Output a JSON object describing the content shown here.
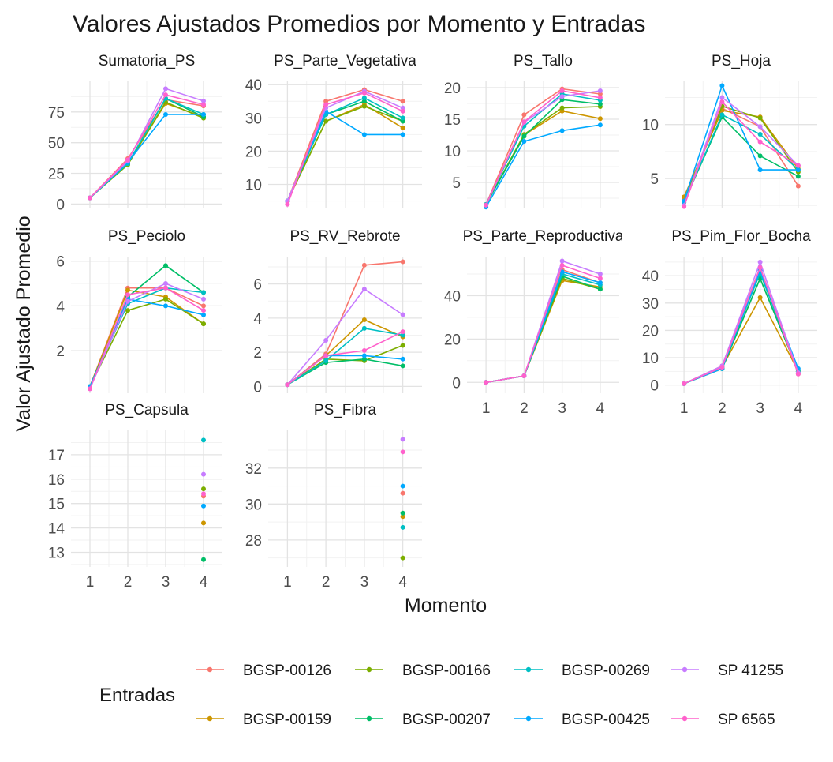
{
  "chart_data": {
    "type": "line",
    "title": "Valores Ajustados Promedios por Momento y Entradas",
    "xlabel": "Momento",
    "ylabel": "Valor Ajustado Promedio",
    "legend": {
      "title": "Entradas",
      "position": "bottom",
      "entries": [
        "BGSP-00126",
        "BGSP-00159",
        "BGSP-00166",
        "BGSP-00207",
        "BGSP-00269",
        "BGSP-00425",
        "SP 41255",
        "SP 6565"
      ]
    },
    "colors": {
      "BGSP-00126": "#F8766D",
      "BGSP-00159": "#CD9600",
      "BGSP-00166": "#7CAE00",
      "BGSP-00207": "#00BE67",
      "BGSP-00269": "#00BFC4",
      "BGSP-00425": "#00A9FF",
      "SP 41255": "#C77CFF",
      "SP 6565": "#FF61CC"
    },
    "x": [
      1,
      2,
      3,
      4
    ],
    "grid": true,
    "facets": [
      {
        "name": "Sumatoria_PS",
        "ylim": [
          -3,
          100
        ],
        "yticks": [
          0,
          25,
          50,
          75
        ],
        "xticks": [],
        "series": {
          "BGSP-00126": [
            5,
            37,
            85,
            80
          ],
          "BGSP-00159": [
            5,
            33,
            82,
            71
          ],
          "BGSP-00166": [
            5,
            32,
            83,
            70
          ],
          "BGSP-00207": [
            5,
            33,
            86,
            71
          ],
          "BGSP-00269": [
            5,
            33,
            86,
            73
          ],
          "BGSP-00425": [
            5,
            34,
            73,
            73
          ],
          "SP 41255": [
            5,
            35,
            94,
            84
          ],
          "SP 6565": [
            5,
            36,
            89,
            81
          ]
        }
      },
      {
        "name": "PS_Parte_Vegetativa",
        "ylim": [
          3,
          41
        ],
        "yticks": [
          10,
          20,
          30,
          40
        ],
        "xticks": [],
        "series": {
          "BGSP-00126": [
            5,
            35,
            38.5,
            35
          ],
          "BGSP-00159": [
            5,
            29,
            34,
            27
          ],
          "BGSP-00166": [
            5,
            29,
            33.5,
            29
          ],
          "BGSP-00207": [
            5,
            31,
            35,
            29
          ],
          "BGSP-00269": [
            5,
            31,
            36,
            30
          ],
          "BGSP-00425": [
            5,
            32,
            25,
            25
          ],
          "SP 41255": [
            5,
            33,
            38,
            33
          ],
          "SP 6565": [
            4,
            34,
            37.5,
            32
          ]
        }
      },
      {
        "name": "PS_Tallo",
        "ylim": [
          1,
          21
        ],
        "yticks": [
          5,
          10,
          15,
          20
        ],
        "xticks": [],
        "series": {
          "BGSP-00126": [
            1.5,
            15.7,
            19.8,
            19
          ],
          "BGSP-00159": [
            1.5,
            12.5,
            16.3,
            15.1
          ],
          "BGSP-00166": [
            1.5,
            12.6,
            16.8,
            17
          ],
          "BGSP-00207": [
            1.5,
            12.3,
            18.1,
            17.4
          ],
          "BGSP-00269": [
            1.5,
            13.9,
            19,
            18
          ],
          "BGSP-00425": [
            1.1,
            11.5,
            13.2,
            14.1
          ],
          "SP 41255": [
            1.4,
            14.5,
            18.6,
            19.5
          ],
          "SP 6565": [
            1.4,
            14.6,
            19.5,
            18.4
          ]
        }
      },
      {
        "name": "PS_Hoja",
        "ylim": [
          2.3,
          14
        ],
        "yticks": [
          5,
          10
        ],
        "xticks": [],
        "series": {
          "BGSP-00126": [
            3.2,
            11.5,
            9.8,
            4.3
          ],
          "BGSP-00159": [
            3.3,
            11.3,
            10.7,
            5.9
          ],
          "BGSP-00166": [
            2.9,
            11.7,
            10.6,
            5.6
          ],
          "BGSP-00207": [
            2.8,
            10.7,
            7.1,
            5.2
          ],
          "BGSP-00269": [
            2.8,
            10.9,
            9.1,
            5.8
          ],
          "BGSP-00425": [
            2.9,
            13.6,
            5.8,
            5.8
          ],
          "SP 41255": [
            2.5,
            12.5,
            9.8,
            6.2
          ],
          "SP 6565": [
            2.4,
            12.1,
            8.4,
            6.2
          ]
        }
      },
      {
        "name": "PS_Peciolo",
        "ylim": [
          0.1,
          6.2
        ],
        "yticks": [
          2,
          4,
          6
        ],
        "xticks": [],
        "series": {
          "BGSP-00126": [
            0.4,
            4.8,
            4.8,
            4
          ],
          "BGSP-00159": [
            0.4,
            4.7,
            4.4,
            3.2
          ],
          "BGSP-00166": [
            0.4,
            3.8,
            4.3,
            3.2
          ],
          "BGSP-00207": [
            0.4,
            4.4,
            5.8,
            4.6
          ],
          "BGSP-00269": [
            0.4,
            4.1,
            4.8,
            4.6
          ],
          "BGSP-00425": [
            0.4,
            4.3,
            4,
            3.6
          ],
          "SP 41255": [
            0.3,
            4.2,
            5,
            4.3
          ],
          "SP 6565": [
            0.3,
            4.5,
            4.8,
            3.8
          ]
        }
      },
      {
        "name": "PS_RV_Rebrote",
        "ylim": [
          -0.4,
          7.6
        ],
        "yticks": [
          0,
          2,
          4,
          6
        ],
        "xticks": [],
        "series": {
          "BGSP-00126": [
            0.1,
            1.9,
            7.1,
            7.3
          ],
          "BGSP-00159": [
            0.1,
            1.8,
            3.9,
            2.9
          ],
          "BGSP-00166": [
            0.1,
            1.6,
            1.5,
            2.4
          ],
          "BGSP-00207": [
            0.1,
            1.4,
            1.6,
            1.2
          ],
          "BGSP-00269": [
            0.1,
            1.5,
            3.4,
            3
          ],
          "BGSP-00425": [
            0.1,
            1.8,
            1.8,
            1.6
          ],
          "SP 41255": [
            0.1,
            2.7,
            5.7,
            4.2
          ],
          "SP 6565": [
            0.1,
            1.8,
            2.1,
            3.2
          ]
        }
      },
      {
        "name": "PS_Parte_Reproductiva",
        "ylim": [
          -5,
          58
        ],
        "yticks": [
          0,
          20,
          40
        ],
        "xticks": [
          1,
          2,
          3,
          4
        ],
        "series": {
          "BGSP-00126": [
            0,
            3,
            52,
            46
          ],
          "BGSP-00159": [
            0,
            3,
            47,
            44
          ],
          "BGSP-00166": [
            0,
            3,
            48,
            43
          ],
          "BGSP-00207": [
            0,
            3,
            49,
            43
          ],
          "BGSP-00269": [
            0,
            3,
            50,
            45
          ],
          "BGSP-00425": [
            0,
            3,
            51,
            46
          ],
          "SP 41255": [
            0,
            3,
            56,
            50
          ],
          "SP 6565": [
            0,
            3,
            54,
            48
          ]
        }
      },
      {
        "name": "PS_Pim_Flor_Bocha",
        "ylim": [
          -3,
          47
        ],
        "yticks": [
          0,
          10,
          20,
          30,
          40
        ],
        "xticks": [
          1,
          2,
          3,
          4
        ],
        "series": {
          "BGSP-00126": [
            0.5,
            7,
            43,
            4
          ],
          "BGSP-00159": [
            0.5,
            6.5,
            32,
            5
          ],
          "BGSP-00166": [
            0.5,
            6,
            39,
            5
          ],
          "BGSP-00207": [
            0.5,
            6,
            39,
            5
          ],
          "BGSP-00269": [
            0.5,
            6.5,
            41,
            5
          ],
          "BGSP-00425": [
            0.5,
            6,
            42,
            6
          ],
          "SP 41255": [
            0.5,
            7,
            45,
            4.5
          ],
          "SP 6565": [
            0.5,
            6.5,
            43,
            4
          ]
        }
      },
      {
        "name": "PS_Capsula",
        "ylim": [
          12.4,
          18
        ],
        "yticks": [
          13,
          14,
          15,
          16,
          17
        ],
        "xticks": [
          1,
          2,
          3,
          4
        ],
        "series": {
          "BGSP-00126": [
            null,
            null,
            null,
            15.3
          ],
          "BGSP-00159": [
            null,
            null,
            null,
            14.2
          ],
          "BGSP-00166": [
            null,
            null,
            null,
            15.6
          ],
          "BGSP-00207": [
            null,
            null,
            null,
            12.7
          ],
          "BGSP-00269": [
            null,
            null,
            null,
            17.6
          ],
          "BGSP-00425": [
            null,
            null,
            null,
            14.9
          ],
          "SP 41255": [
            null,
            null,
            null,
            16.2
          ],
          "SP 6565": [
            null,
            null,
            null,
            15.4
          ]
        }
      },
      {
        "name": "PS_Fibra",
        "ylim": [
          26.5,
          34.1
        ],
        "yticks": [
          28,
          30,
          32
        ],
        "xticks": [
          1,
          2,
          3,
          4
        ],
        "series": {
          "BGSP-00126": [
            null,
            null,
            null,
            30.6
          ],
          "BGSP-00159": [
            null,
            null,
            null,
            29.3
          ],
          "BGSP-00166": [
            null,
            null,
            null,
            27
          ],
          "BGSP-00207": [
            null,
            null,
            null,
            29.5
          ],
          "BGSP-00269": [
            null,
            null,
            null,
            28.7
          ],
          "BGSP-00425": [
            null,
            null,
            null,
            31
          ],
          "SP 41255": [
            null,
            null,
            null,
            33.6
          ],
          "SP 6565": [
            null,
            null,
            null,
            32.9
          ]
        }
      }
    ]
  }
}
